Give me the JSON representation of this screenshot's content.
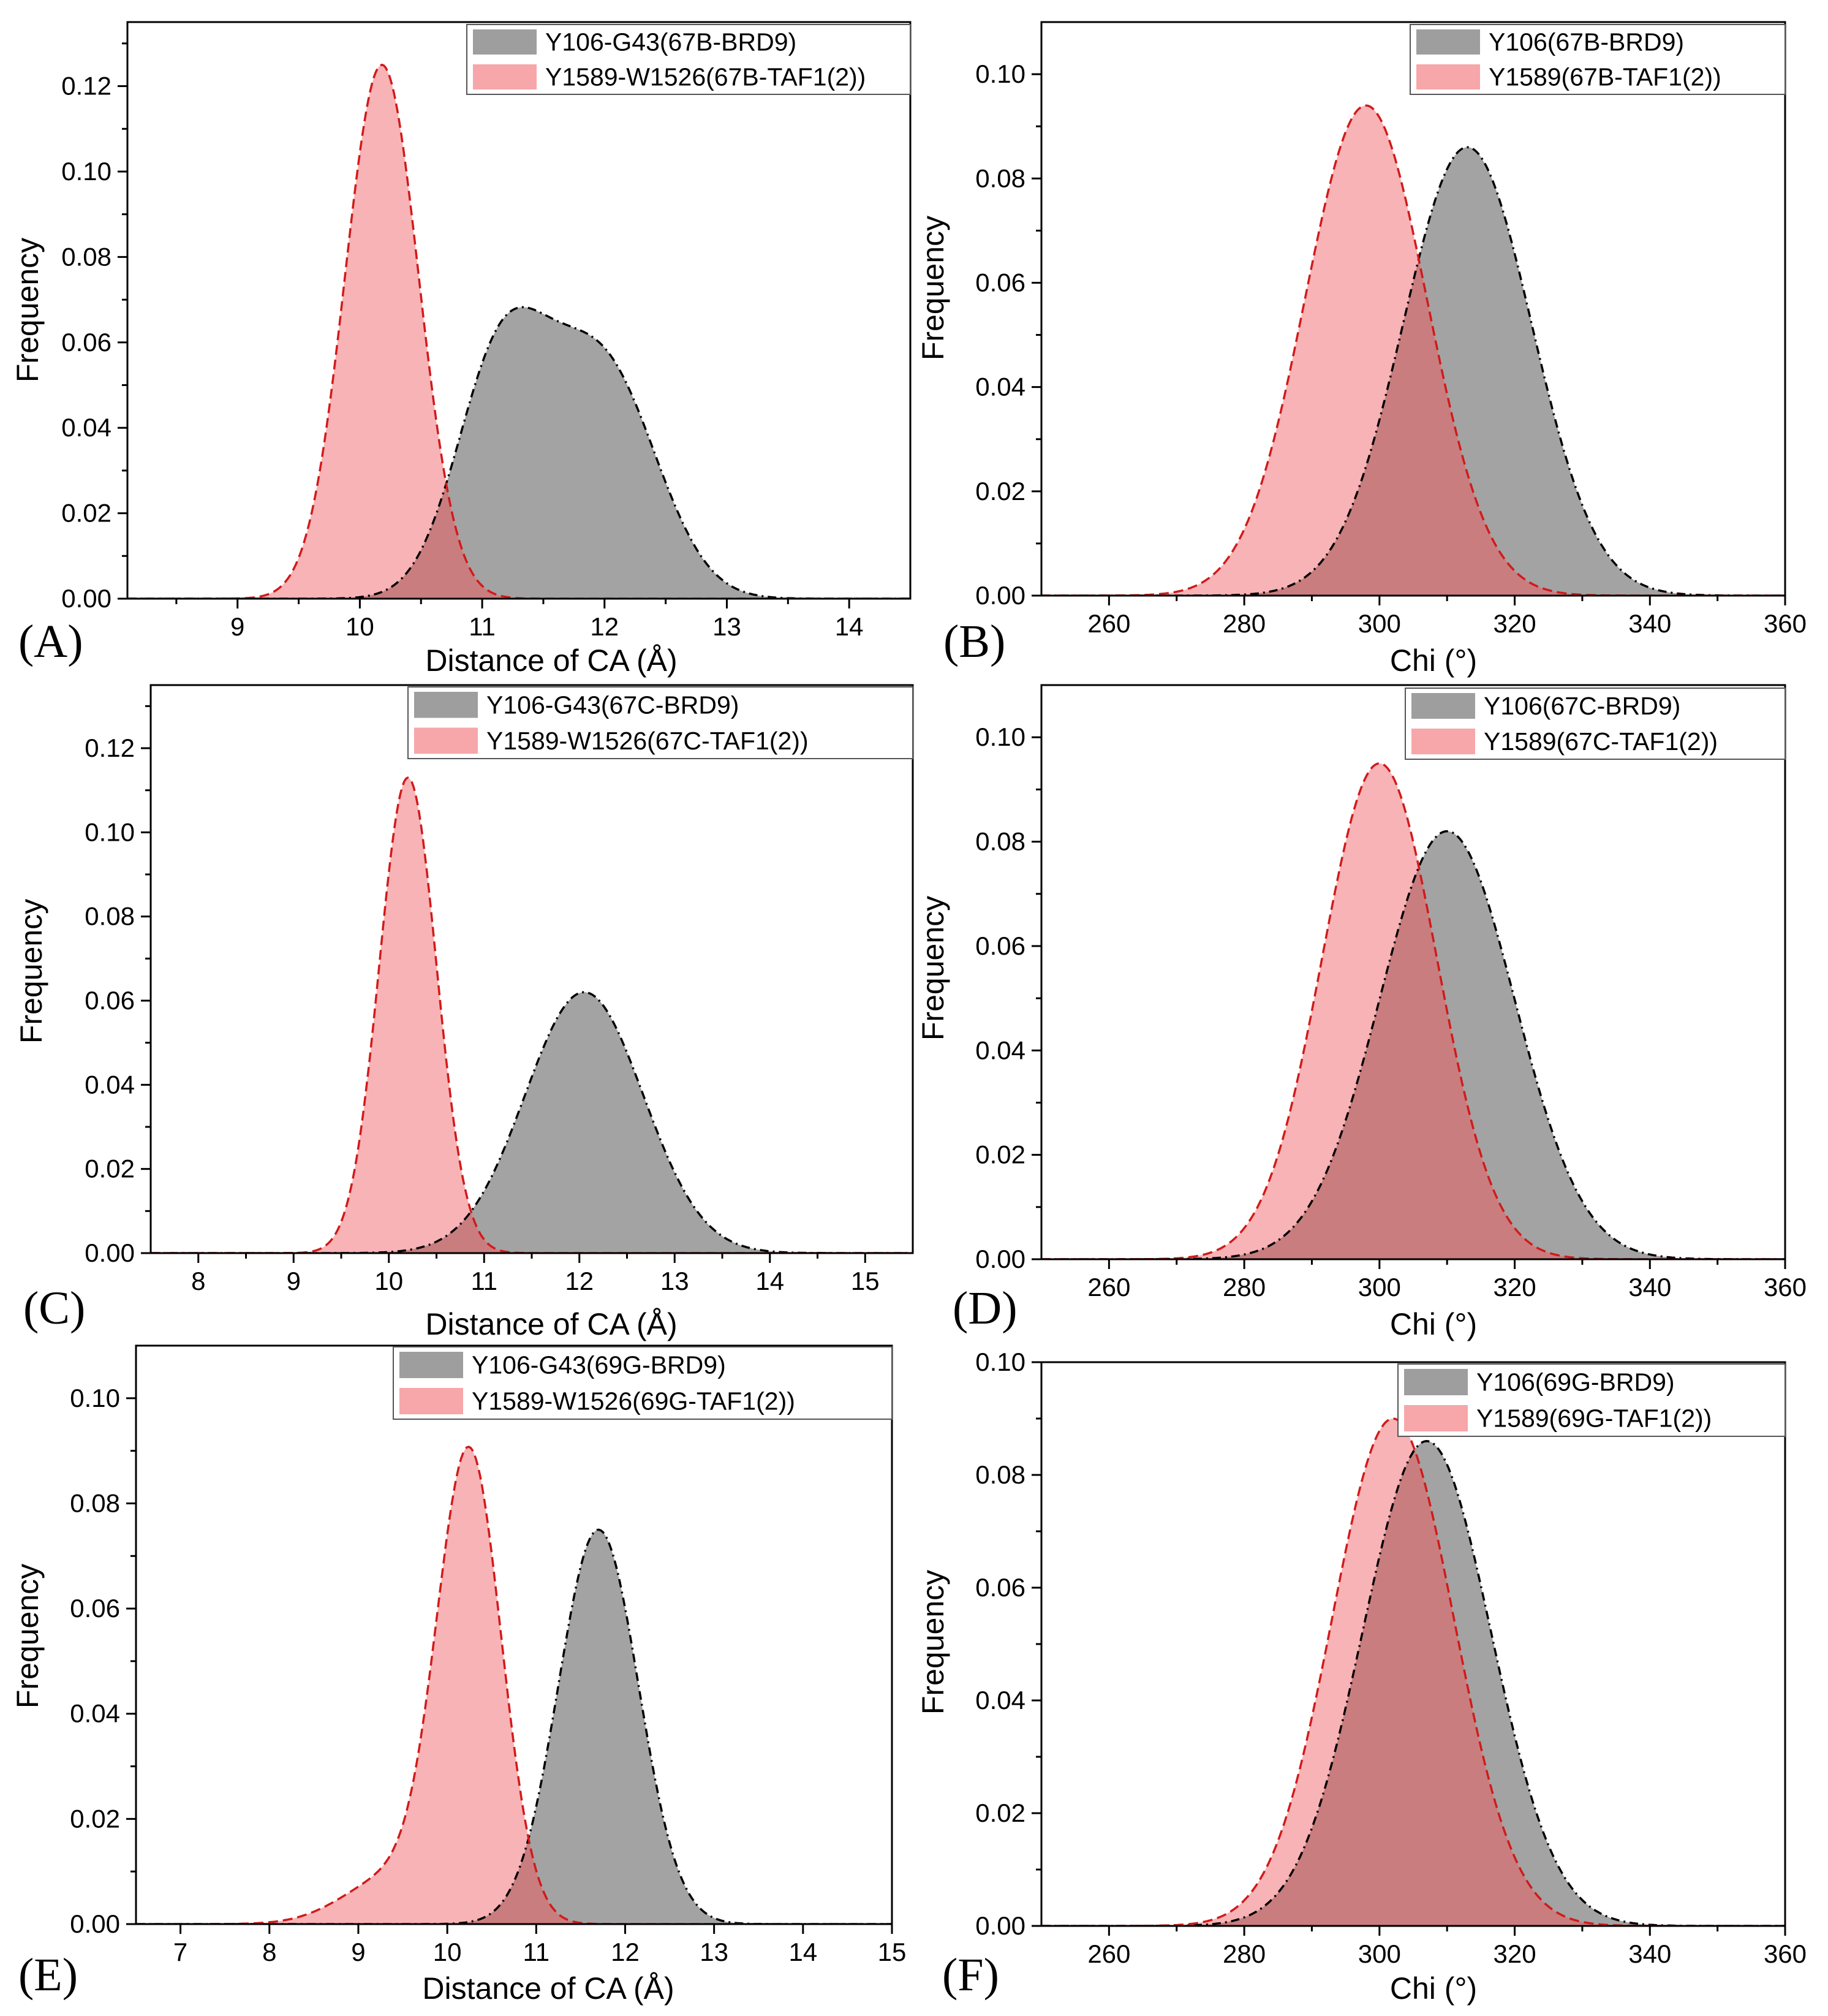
{
  "colors": {
    "grey_fill": "#9e9e9e",
    "grey_line": "#000000",
    "pink_fill": "#f7a6a9",
    "pink_line": "#d11a1a",
    "overlap": "#c97d7f"
  },
  "chart_data": [
    {
      "type": "area",
      "panel": "(A)",
      "xlabel": "Distance of CA (Å)",
      "ylabel": "Frequency",
      "xlim": [
        8.1,
        14.5
      ],
      "ylim": [
        0,
        0.135
      ],
      "xticks": [
        9,
        10,
        11,
        12,
        13,
        14
      ],
      "yticks": [
        0.0,
        0.02,
        0.04,
        0.06,
        0.08,
        0.1,
        0.12
      ],
      "x_minor": true,
      "series": [
        {
          "name": "Y106-G43(67B-BRD9)",
          "color": "grey",
          "peaks": [
            {
              "mu": 11.13,
              "sigma": 0.36,
              "amp": 0.05
            },
            {
              "mu": 12.05,
              "sigma": 0.42,
              "amp": 0.046
            },
            {
              "mu": 11.58,
              "sigma": 0.4,
              "amp": 0.018
            }
          ]
        },
        {
          "name": "Y1589-W1526(67B-TAF1(2))",
          "color": "pink",
          "peaks": [
            {
              "mu": 10.18,
              "sigma": 0.3,
              "amp": 0.125
            }
          ]
        }
      ]
    },
    {
      "type": "area",
      "panel": "(B)",
      "xlabel": "Chi (°)",
      "ylabel": "Frequency",
      "xlim": [
        250,
        360
      ],
      "ylim": [
        0,
        0.11
      ],
      "xticks": [
        260,
        280,
        300,
        320,
        340,
        360
      ],
      "yticks": [
        0.0,
        0.02,
        0.04,
        0.06,
        0.08,
        0.1
      ],
      "x_minor": true,
      "series": [
        {
          "name": "Y106(67B-BRD9)",
          "color": "grey",
          "peaks": [
            {
              "mu": 313,
              "sigma": 9.5,
              "amp": 0.086
            }
          ]
        },
        {
          "name": "Y1589(67B-TAF1(2))",
          "color": "pink",
          "peaks": [
            {
              "mu": 298,
              "sigma": 9.0,
              "amp": 0.094
            }
          ]
        }
      ]
    },
    {
      "type": "area",
      "panel": "(C)",
      "xlabel": "Distance of CA (Å)",
      "ylabel": "Frequency",
      "xlim": [
        7.5,
        15.5
      ],
      "ylim": [
        0,
        0.135
      ],
      "xticks": [
        8,
        9,
        10,
        11,
        12,
        13,
        14,
        15
      ],
      "yticks": [
        0.0,
        0.02,
        0.04,
        0.06,
        0.08,
        0.1,
        0.12
      ],
      "x_minor": true,
      "series": [
        {
          "name": "Y106-G43(67C-BRD9)",
          "color": "grey",
          "peaks": [
            {
              "mu": 12.05,
              "sigma": 0.62,
              "amp": 0.062
            }
          ]
        },
        {
          "name": "Y1589-W1526(67C-TAF1(2))",
          "color": "pink",
          "peaks": [
            {
              "mu": 10.2,
              "sigma": 0.3,
              "amp": 0.113
            }
          ]
        }
      ]
    },
    {
      "type": "area",
      "panel": "(D)",
      "xlabel": "Chi (°)",
      "ylabel": "Frequency",
      "xlim": [
        250,
        360
      ],
      "ylim": [
        0,
        0.11
      ],
      "xticks": [
        260,
        280,
        300,
        320,
        340,
        360
      ],
      "yticks": [
        0.0,
        0.02,
        0.04,
        0.06,
        0.08,
        0.1
      ],
      "x_minor": true,
      "series": [
        {
          "name": "Y106(67C-BRD9)",
          "color": "grey",
          "peaks": [
            {
              "mu": 310,
              "sigma": 10.0,
              "amp": 0.082
            }
          ]
        },
        {
          "name": "Y1589(67C-TAF1(2))",
          "color": "pink",
          "peaks": [
            {
              "mu": 300,
              "sigma": 8.5,
              "amp": 0.095
            }
          ]
        }
      ]
    },
    {
      "type": "area",
      "panel": "(E)",
      "xlabel": "Distance of CA (Å)",
      "ylabel": "Frequency",
      "xlim": [
        6.5,
        15
      ],
      "ylim": [
        0,
        0.11
      ],
      "xticks": [
        7,
        8,
        9,
        10,
        11,
        12,
        13,
        14,
        15
      ],
      "yticks": [
        0.0,
        0.02,
        0.04,
        0.06,
        0.08,
        0.1
      ],
      "x_minor": false,
      "series": [
        {
          "name": "Y106-G43(69G-BRD9)",
          "color": "grey",
          "peaks": [
            {
              "mu": 11.7,
              "sigma": 0.45,
              "amp": 0.075
            }
          ]
        },
        {
          "name": "Y1589-W1526(69G-TAF1(2))",
          "color": "pink",
          "peaks": [
            {
              "mu": 10.25,
              "sigma": 0.36,
              "amp": 0.088
            },
            {
              "mu": 9.4,
              "sigma": 0.55,
              "amp": 0.009
            }
          ]
        }
      ]
    },
    {
      "type": "area",
      "panel": "(F)",
      "xlabel": "Chi (°)",
      "ylabel": "Frequency",
      "xlim": [
        250,
        360
      ],
      "ylim": [
        0,
        0.1
      ],
      "xticks": [
        260,
        280,
        300,
        320,
        340,
        360
      ],
      "yticks": [
        0.0,
        0.02,
        0.04,
        0.06,
        0.08,
        0.1
      ],
      "x_minor": true,
      "series": [
        {
          "name": "Y106(69G-BRD9)",
          "color": "grey",
          "peaks": [
            {
              "mu": 307,
              "sigma": 9.5,
              "amp": 0.086
            }
          ]
        },
        {
          "name": "Y1589(69G-TAF1(2))",
          "color": "pink",
          "peaks": [
            {
              "mu": 302,
              "sigma": 9.0,
              "amp": 0.09
            }
          ]
        }
      ]
    }
  ]
}
